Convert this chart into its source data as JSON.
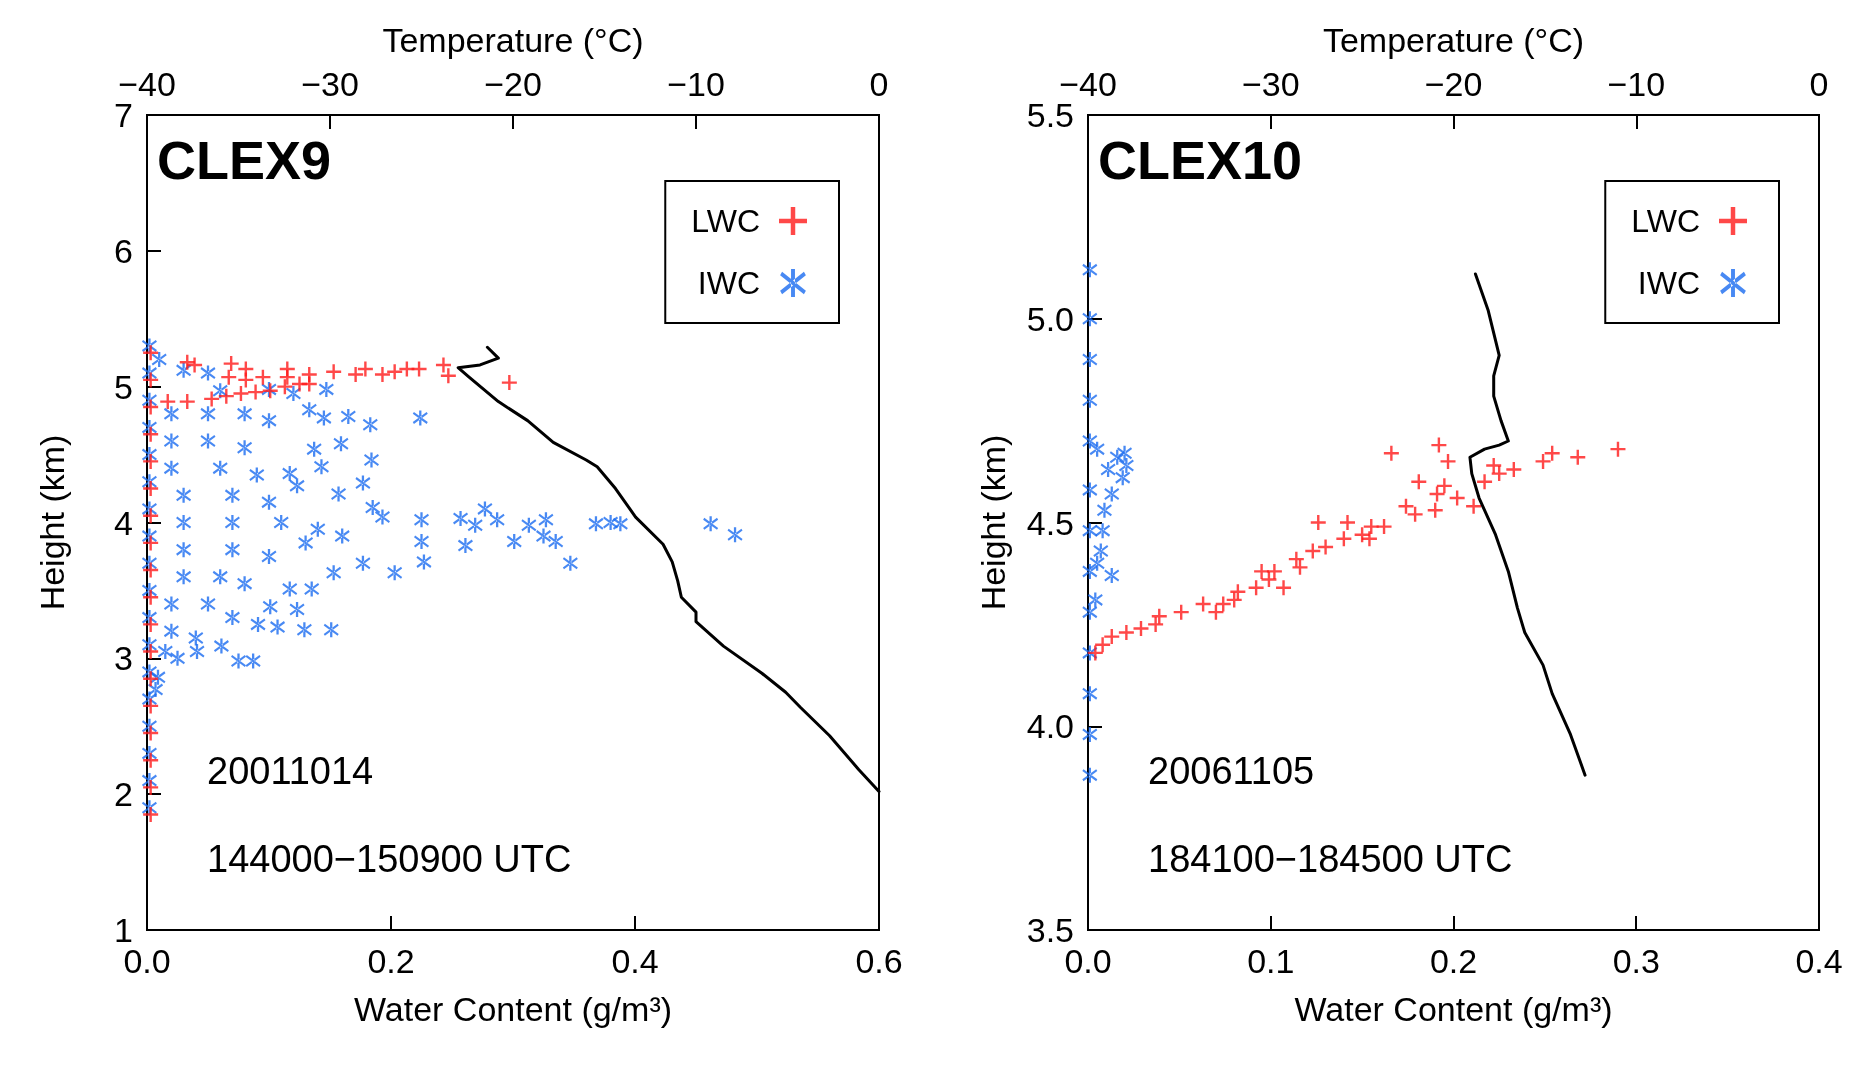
{
  "chart_data": [
    {
      "type": "scatter",
      "title": "CLEX9",
      "xlabel": "Water Content (g/m³)",
      "x2label": "Temperature (°C)",
      "ylabel": "Height (km)",
      "annotations": [
        "20011014",
        "144000−150900 UTC"
      ],
      "xlim": [
        0,
        0.6
      ],
      "xticks": [
        {
          "value": 0,
          "label": "0.0"
        },
        0.2,
        0.4,
        0.6
      ],
      "x2lim": [
        -40,
        0
      ],
      "x2ticks": [
        {
          "value": -40,
          "label": "−40"
        },
        {
          "value": -30,
          "label": "−30"
        },
        {
          "value": -20,
          "label": "−20"
        },
        {
          "value": -10,
          "label": "−10"
        },
        0
      ],
      "ylim": [
        1,
        7
      ],
      "yticks": [
        1,
        2,
        3,
        4,
        5,
        6,
        7
      ],
      "legend": "top right",
      "series": [
        {
          "type": "line",
          "axis": "x2",
          "color": "#000000",
          "x": [
            -21.4,
            -20.8,
            -21.8,
            -23.0,
            -22.4,
            -20.8,
            -19.2,
            -17.8,
            -16.0,
            -15.4,
            -14.4,
            -13.3,
            -11.8,
            -11.3,
            -11.0,
            -10.8,
            -10.0,
            -10.0,
            -8.5,
            -6.4,
            -5.1,
            -4.3,
            -2.7,
            -1.1,
            0
          ],
          "values": [
            5.29,
            5.21,
            5.16,
            5.14,
            5.07,
            4.89,
            4.75,
            4.59,
            4.46,
            4.41,
            4.25,
            4.04,
            3.84,
            3.71,
            3.57,
            3.45,
            3.34,
            3.27,
            3.09,
            2.89,
            2.75,
            2.64,
            2.43,
            2.18,
            2.02
          ]
        },
        {
          "type": "scatter",
          "name": "IWC",
          "color": "#1a6cf0",
          "x": [
            0.002,
            0.002,
            0.002,
            0.002,
            0.002,
            0.002,
            0.002,
            0.002,
            0.002,
            0.002,
            0.002,
            0.002,
            0.002,
            0.002,
            0.002,
            0.002,
            0.002,
            0.002,
            0.01,
            0.03,
            0.05,
            0.06,
            0.1,
            0.12,
            0.147,
            0.02,
            0.05,
            0.08,
            0.1,
            0.02,
            0.05,
            0.08,
            0.02,
            0.06,
            0.09,
            0.03,
            0.07,
            0.1,
            0.03,
            0.07,
            0.11,
            0.14,
            0.16,
            0.13,
            0.03,
            0.07,
            0.1,
            0.03,
            0.06,
            0.08,
            0.02,
            0.05,
            0.07,
            0.02,
            0.04,
            0.015,
            0.133,
            0.145,
            0.165,
            0.183,
            0.224,
            0.159,
            0.137,
            0.184,
            0.143,
            0.117,
            0.177,
            0.123,
            0.157,
            0.185,
            0.277,
            0.193,
            0.225,
            0.257,
            0.269,
            0.287,
            0.313,
            0.327,
            0.368,
            0.38,
            0.388,
            0.462,
            0.482,
            0.301,
            0.325,
            0.335,
            0.347,
            0.261,
            0.225,
            0.203,
            0.227,
            0.177,
            0.153,
            0.135,
            0.117,
            0.101,
            0.123,
            0.151,
            0.129,
            0.107,
            0.091,
            0.075,
            0.087,
            0.061,
            0.041,
            0.025,
            0.009,
            0.007
          ],
          "values": [
            1.9,
            2.1,
            2.3,
            2.5,
            2.7,
            2.9,
            3.1,
            3.3,
            3.5,
            3.7,
            3.9,
            4.1,
            4.3,
            4.5,
            4.7,
            4.9,
            5.1,
            5.3,
            5.2,
            5.12,
            5.1,
            4.97,
            4.98,
            4.95,
            4.98,
            4.8,
            4.8,
            4.8,
            4.75,
            4.6,
            4.6,
            4.55,
            4.4,
            4.4,
            4.35,
            4.2,
            4.2,
            4.15,
            4.0,
            4.0,
            4.0,
            3.95,
            3.9,
            3.85,
            3.8,
            3.8,
            3.75,
            3.6,
            3.6,
            3.55,
            3.4,
            3.4,
            3.3,
            3.2,
            3.15,
            3.05,
            4.83,
            4.77,
            4.78,
            4.72,
            4.77,
            4.58,
            4.54,
            4.46,
            4.41,
            4.36,
            4.29,
            4.27,
            4.21,
            4.11,
            4.1,
            4.04,
            4.02,
            4.03,
            3.98,
            4.02,
            3.98,
            4.02,
            3.99,
            4.0,
            3.99,
            3.99,
            3.91,
            3.86,
            3.9,
            3.86,
            3.7,
            3.83,
            3.86,
            3.63,
            3.71,
            3.7,
            3.63,
            3.51,
            3.51,
            3.38,
            3.36,
            3.21,
            3.21,
            3.23,
            3.25,
            2.98,
            2.98,
            3.09,
            3.05,
            3.0,
            2.86,
            2.77
          ]
        },
        {
          "type": "scatter",
          "name": "LWC",
          "color": "#ff1a1a",
          "marker": "cross",
          "x": [
            0.003,
            0.003,
            0.003,
            0.003,
            0.003,
            0.003,
            0.003,
            0.003,
            0.003,
            0.003,
            0.003,
            0.003,
            0.003,
            0.003,
            0.003,
            0.003,
            0.003,
            0.003,
            0.017,
            0.033,
            0.053,
            0.065,
            0.077,
            0.089,
            0.101,
            0.113,
            0.125,
            0.133,
            0.033,
            0.039,
            0.069,
            0.067,
            0.081,
            0.081,
            0.095,
            0.115,
            0.115,
            0.133,
            0.153,
            0.171,
            0.179,
            0.193,
            0.203,
            0.213,
            0.223,
            0.243,
            0.247,
            0.297
          ],
          "values": [
            1.85,
            2.05,
            2.25,
            2.45,
            2.65,
            2.85,
            3.05,
            3.25,
            3.45,
            3.65,
            3.85,
            4.05,
            4.25,
            4.45,
            4.65,
            4.85,
            5.05,
            5.25,
            4.89,
            4.89,
            4.91,
            4.93,
            4.95,
            4.96,
            4.97,
            5.0,
            5.02,
            5.02,
            5.18,
            5.16,
            5.17,
            5.07,
            5.13,
            5.05,
            5.07,
            5.13,
            5.07,
            5.09,
            5.11,
            5.09,
            5.13,
            5.09,
            5.11,
            5.13,
            5.13,
            5.16,
            5.08,
            5.03
          ]
        }
      ]
    },
    {
      "type": "scatter",
      "title": "CLEX10",
      "xlabel": "Water Content (g/m³)",
      "x2label": "Temperature (°C)",
      "ylabel": "Height (km)",
      "annotations": [
        "20061105",
        "184100−184500 UTC"
      ],
      "xlim": [
        0,
        0.4
      ],
      "xticks": [
        {
          "value": 0,
          "label": "0.0"
        },
        0.1,
        0.2,
        0.3,
        0.4
      ],
      "x2lim": [
        -40,
        0
      ],
      "x2ticks": [
        {
          "value": -40,
          "label": "−40"
        },
        {
          "value": -30,
          "label": "−30"
        },
        {
          "value": -20,
          "label": "−20"
        },
        {
          "value": -10,
          "label": "−10"
        },
        0
      ],
      "ylim": [
        3.5,
        5.5
      ],
      "yticks": [
        3.5,
        {
          "value": 4,
          "label": "4.0"
        },
        4.5,
        {
          "value": 5,
          "label": "5.0"
        },
        5.5
      ],
      "legend": "top right",
      "series": [
        {
          "type": "line",
          "axis": "x2",
          "color": "#000000",
          "x": [
            -18.8,
            -18.1,
            -17.5,
            -17.8,
            -17.8,
            -17.4,
            -17.0,
            -17.5,
            -18.3,
            -19.1,
            -19.0,
            -18.6,
            -17.7,
            -17.0,
            -16.5,
            -16.1,
            -15.1,
            -14.6,
            -13.6,
            -12.8
          ],
          "values": [
            5.11,
            5.02,
            4.91,
            4.86,
            4.81,
            4.75,
            4.7,
            4.69,
            4.68,
            4.66,
            4.62,
            4.56,
            4.47,
            4.38,
            4.29,
            4.23,
            4.15,
            4.08,
            3.98,
            3.88
          ]
        },
        {
          "type": "scatter",
          "name": "IWC",
          "color": "#1a6cf0",
          "x": [
            0.001,
            0.001,
            0.001,
            0.001,
            0.001,
            0.001,
            0.001,
            0.001,
            0.001,
            0.001,
            0.001,
            0.001,
            0.001,
            0.005,
            0.016,
            0.021,
            0.019,
            0.013,
            0.009,
            0.008,
            0.007,
            0.005,
            0.013,
            0.004,
            0.011,
            0.02
          ],
          "values": [
            3.88,
            3.98,
            4.08,
            4.18,
            4.28,
            4.38,
            4.48,
            4.58,
            4.7,
            4.8,
            4.9,
            5.0,
            5.12,
            4.68,
            4.66,
            4.64,
            4.61,
            4.57,
            4.53,
            4.48,
            4.43,
            4.4,
            4.37,
            4.31,
            4.63,
            4.67
          ]
        },
        {
          "type": "scatter",
          "name": "LWC",
          "color": "#ff1a1a",
          "marker": "cross",
          "x": [
            0.004,
            0.008,
            0.013,
            0.021,
            0.029,
            0.037,
            0.039,
            0.051,
            0.063,
            0.07,
            0.074,
            0.08,
            0.082,
            0.092,
            0.095,
            0.099,
            0.102,
            0.107,
            0.114,
            0.116,
            0.123,
            0.126,
            0.13,
            0.14,
            0.142,
            0.15,
            0.155,
            0.154,
            0.162,
            0.166,
            0.174,
            0.179,
            0.181,
            0.19,
            0.191,
            0.192,
            0.195,
            0.197,
            0.202,
            0.211,
            0.217,
            0.222,
            0.225,
            0.233,
            0.249,
            0.254,
            0.268,
            0.29
          ],
          "values": [
            4.18,
            4.2,
            4.22,
            4.23,
            4.24,
            4.25,
            4.27,
            4.28,
            4.3,
            4.28,
            4.3,
            4.31,
            4.33,
            4.34,
            4.38,
            4.36,
            4.38,
            4.34,
            4.41,
            4.39,
            4.43,
            4.5,
            4.44,
            4.46,
            4.5,
            4.47,
            4.49,
            4.46,
            4.49,
            4.67,
            4.54,
            4.52,
            4.6,
            4.53,
            4.57,
            4.69,
            4.59,
            4.65,
            4.56,
            4.54,
            4.6,
            4.64,
            4.62,
            4.63,
            4.65,
            4.67,
            4.66,
            4.68
          ]
        }
      ]
    }
  ]
}
